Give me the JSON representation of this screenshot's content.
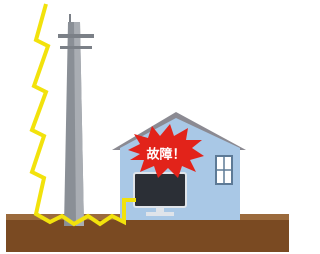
{
  "illustration": {
    "label": "故障！"
  }
}
